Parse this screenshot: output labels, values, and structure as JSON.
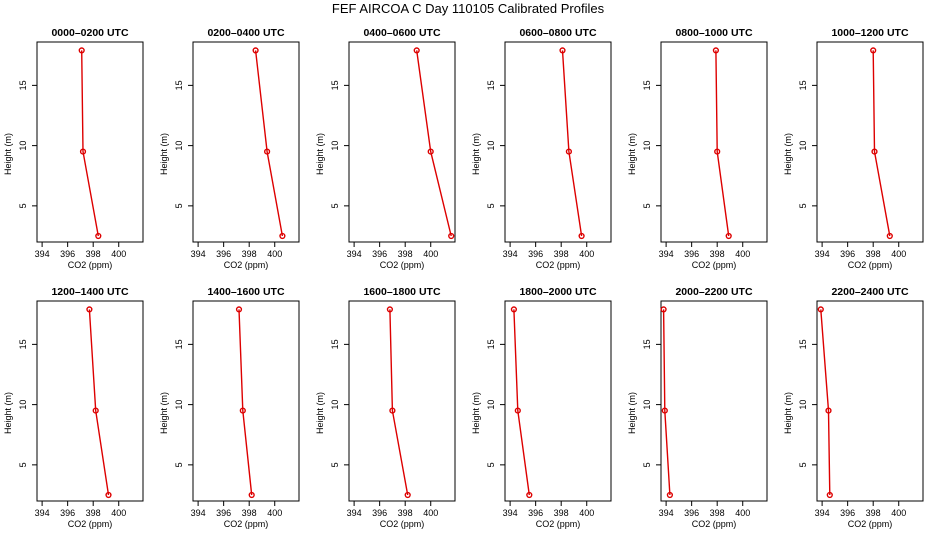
{
  "figure": {
    "title": "FEF AIRCOA C  Day 110105  Calibrated Profiles"
  },
  "chart_data": {
    "type": "line",
    "xlabel": "CO2 (ppm)",
    "ylabel": "Height (m)",
    "xlim": [
      393.6,
      401.9
    ],
    "ylim": [
      2.0,
      18.6
    ],
    "xticks": [
      394,
      396,
      398,
      400
    ],
    "yticks": [
      5,
      10,
      15
    ],
    "heights": [
      17.9,
      9.5,
      2.5
    ],
    "line_color": "#dd0000",
    "marker_color": "#dd0000",
    "panels": [
      {
        "title": "0000–0200 UTC",
        "values": [
          397.1,
          397.2,
          398.4
        ]
      },
      {
        "title": "0200–0400 UTC",
        "values": [
          398.5,
          399.4,
          400.6
        ]
      },
      {
        "title": "0400–0600 UTC",
        "values": [
          398.9,
          400.0,
          401.6
        ]
      },
      {
        "title": "0600–0800 UTC",
        "values": [
          398.1,
          398.6,
          399.6
        ]
      },
      {
        "title": "0800–1000 UTC",
        "values": [
          397.9,
          398.0,
          398.9
        ]
      },
      {
        "title": "1000–1200 UTC",
        "values": [
          398.0,
          398.1,
          399.3
        ]
      },
      {
        "title": "1200–1400 UTC",
        "values": [
          397.7,
          398.2,
          399.2
        ]
      },
      {
        "title": "1400–1600 UTC",
        "values": [
          397.2,
          397.5,
          398.2
        ]
      },
      {
        "title": "1600–1800 UTC",
        "values": [
          396.8,
          397.0,
          398.2
        ]
      },
      {
        "title": "1800–2000 UTC",
        "values": [
          394.3,
          394.6,
          395.5
        ]
      },
      {
        "title": "2000–2200 UTC",
        "values": [
          393.8,
          393.9,
          394.3
        ]
      },
      {
        "title": "2200–2400 UTC",
        "values": [
          393.9,
          394.5,
          394.6
        ]
      }
    ]
  }
}
